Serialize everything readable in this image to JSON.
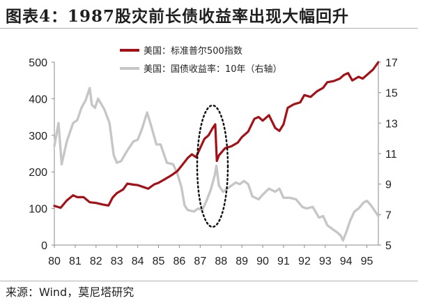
{
  "title": "图表4：1987股灾前长债收益率出现大幅回升",
  "source": "来源：Wind，莫尼塔研究",
  "chart_data": {
    "type": "line",
    "x_tick_labels": [
      "80",
      "81",
      "82",
      "83",
      "84",
      "85",
      "86",
      "87",
      "88",
      "89",
      "90",
      "91",
      "92",
      "93",
      "94",
      "95"
    ],
    "x_range": [
      1980.0,
      1995.55
    ],
    "y_left": {
      "range": [
        0,
        500
      ],
      "ticks": [
        0,
        100,
        200,
        300,
        400,
        500
      ]
    },
    "y_right": {
      "range": [
        5,
        17
      ],
      "ticks": [
        5,
        7,
        9,
        11,
        13,
        15,
        17
      ]
    },
    "legend_placement": "top-center",
    "annotation": "dotted ellipse around 1987",
    "series": [
      {
        "name": "美国：标准普尔500指数",
        "axis": "left",
        "color": "#a50f15",
        "points": [
          [
            1980.0,
            107
          ],
          [
            1980.3,
            102
          ],
          [
            1980.6,
            122
          ],
          [
            1980.9,
            136
          ],
          [
            1981.1,
            131
          ],
          [
            1981.4,
            131
          ],
          [
            1981.7,
            117
          ],
          [
            1982.0,
            115
          ],
          [
            1982.3,
            111
          ],
          [
            1982.6,
            108
          ],
          [
            1982.8,
            130
          ],
          [
            1983.0,
            142
          ],
          [
            1983.3,
            152
          ],
          [
            1983.5,
            168
          ],
          [
            1983.8,
            165
          ],
          [
            1984.0,
            164
          ],
          [
            1984.3,
            158
          ],
          [
            1984.5,
            154
          ],
          [
            1984.8,
            166
          ],
          [
            1985.0,
            170
          ],
          [
            1985.3,
            180
          ],
          [
            1985.6,
            190
          ],
          [
            1985.9,
            202
          ],
          [
            1986.1,
            216
          ],
          [
            1986.4,
            238
          ],
          [
            1986.6,
            248
          ],
          [
            1986.8,
            240
          ],
          [
            1987.0,
            265
          ],
          [
            1987.2,
            290
          ],
          [
            1987.4,
            300
          ],
          [
            1987.6,
            320
          ],
          [
            1987.72,
            330
          ],
          [
            1987.8,
            230
          ],
          [
            1987.9,
            245
          ],
          [
            1988.2,
            265
          ],
          [
            1988.5,
            270
          ],
          [
            1988.8,
            280
          ],
          [
            1989.0,
            295
          ],
          [
            1989.3,
            310
          ],
          [
            1989.6,
            345
          ],
          [
            1989.8,
            350
          ],
          [
            1990.0,
            340
          ],
          [
            1990.3,
            355
          ],
          [
            1990.6,
            320
          ],
          [
            1990.8,
            312
          ],
          [
            1991.0,
            330
          ],
          [
            1991.2,
            375
          ],
          [
            1991.5,
            385
          ],
          [
            1991.8,
            390
          ],
          [
            1992.0,
            410
          ],
          [
            1992.3,
            405
          ],
          [
            1992.6,
            420
          ],
          [
            1992.9,
            430
          ],
          [
            1993.1,
            445
          ],
          [
            1993.4,
            448
          ],
          [
            1993.7,
            455
          ],
          [
            1993.9,
            465
          ],
          [
            1994.1,
            470
          ],
          [
            1994.3,
            450
          ],
          [
            1994.6,
            460
          ],
          [
            1994.8,
            455
          ],
          [
            1995.0,
            465
          ],
          [
            1995.3,
            480
          ],
          [
            1995.55,
            500
          ]
        ]
      },
      {
        "name": "美国：国债收益率：10年（右轴）",
        "axis": "right",
        "color": "#c6c6c6",
        "points": [
          [
            1980.0,
            11.5
          ],
          [
            1980.2,
            13.0
          ],
          [
            1980.35,
            10.3
          ],
          [
            1980.6,
            11.8
          ],
          [
            1980.9,
            13.0
          ],
          [
            1981.1,
            13.2
          ],
          [
            1981.3,
            14.0
          ],
          [
            1981.5,
            14.5
          ],
          [
            1981.7,
            15.3
          ],
          [
            1981.8,
            14.2
          ],
          [
            1981.95,
            14.0
          ],
          [
            1982.1,
            14.6
          ],
          [
            1982.4,
            13.9
          ],
          [
            1982.65,
            13.0
          ],
          [
            1982.85,
            10.9
          ],
          [
            1983.0,
            10.4
          ],
          [
            1983.2,
            10.5
          ],
          [
            1983.5,
            11.2
          ],
          [
            1983.8,
            11.8
          ],
          [
            1984.0,
            11.9
          ],
          [
            1984.2,
            12.6
          ],
          [
            1984.45,
            13.7
          ],
          [
            1984.65,
            12.8
          ],
          [
            1984.9,
            11.6
          ],
          [
            1985.1,
            11.6
          ],
          [
            1985.4,
            10.4
          ],
          [
            1985.7,
            10.3
          ],
          [
            1985.9,
            9.7
          ],
          [
            1986.1,
            8.8
          ],
          [
            1986.25,
            7.6
          ],
          [
            1986.4,
            7.3
          ],
          [
            1986.7,
            7.2
          ],
          [
            1986.9,
            7.4
          ],
          [
            1987.1,
            7.3
          ],
          [
            1987.3,
            7.9
          ],
          [
            1987.5,
            8.6
          ],
          [
            1987.7,
            9.6
          ],
          [
            1987.78,
            10.2
          ],
          [
            1987.9,
            8.9
          ],
          [
            1988.1,
            8.5
          ],
          [
            1988.4,
            8.8
          ],
          [
            1988.7,
            9.1
          ],
          [
            1988.9,
            9.0
          ],
          [
            1989.1,
            9.2
          ],
          [
            1989.3,
            9.0
          ],
          [
            1989.5,
            8.2
          ],
          [
            1989.8,
            8.0
          ],
          [
            1990.0,
            8.3
          ],
          [
            1990.3,
            8.7
          ],
          [
            1990.6,
            8.5
          ],
          [
            1990.8,
            8.7
          ],
          [
            1991.0,
            8.1
          ],
          [
            1991.3,
            8.1
          ],
          [
            1991.6,
            8.0
          ],
          [
            1991.9,
            7.5
          ],
          [
            1992.1,
            7.4
          ],
          [
            1992.4,
            7.5
          ],
          [
            1992.7,
            6.8
          ],
          [
            1992.9,
            6.9
          ],
          [
            1993.1,
            6.3
          ],
          [
            1993.4,
            6.0
          ],
          [
            1993.6,
            5.8
          ],
          [
            1993.75,
            5.6
          ],
          [
            1993.85,
            5.3
          ],
          [
            1994.0,
            5.8
          ],
          [
            1994.2,
            6.6
          ],
          [
            1994.4,
            7.2
          ],
          [
            1994.6,
            7.4
          ],
          [
            1994.85,
            7.8
          ],
          [
            1995.0,
            7.9
          ],
          [
            1995.2,
            7.6
          ],
          [
            1995.4,
            7.2
          ],
          [
            1995.55,
            6.9
          ]
        ]
      }
    ]
  }
}
